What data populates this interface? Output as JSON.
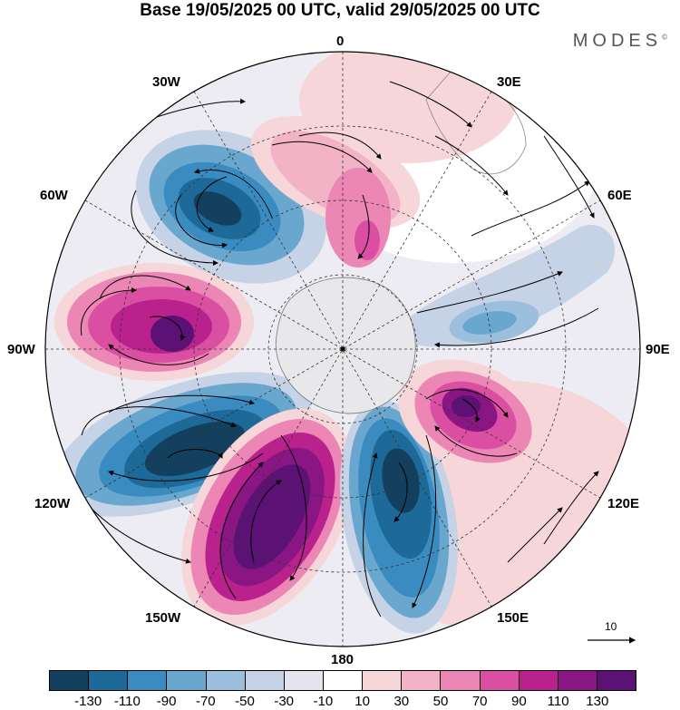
{
  "title": "Base 19/05/2025 00 UTC, valid 29/05/2025 00 UTC",
  "brand": "MODES",
  "brand_mark": "©",
  "longitude_labels": {
    "lon_0": "0",
    "lon_30e": "30E",
    "lon_60e": "60E",
    "lon_90e": "90E",
    "lon_120e": "120E",
    "lon_150e": "150E",
    "lon_180": "180",
    "lon_150w": "150W",
    "lon_120w": "120W",
    "lon_90w": "90W",
    "lon_60w": "60W",
    "lon_30w": "30W"
  },
  "vector_reference": "10",
  "colorbar": {
    "ticks": [
      "-130",
      "-110",
      "-90",
      "-70",
      "-50",
      "-30",
      "-10",
      "10",
      "30",
      "50",
      "70",
      "90",
      "110",
      "130"
    ],
    "colors": [
      "#13405e",
      "#1d6a99",
      "#3a8bc0",
      "#6aa7cf",
      "#9bbfdc",
      "#c6d2e6",
      "#e4e4ef",
      "#ffffff",
      "#f6d6d8",
      "#f3b3c6",
      "#ec86b4",
      "#db4fa3",
      "#b9228c",
      "#8a1684",
      "#5c1175"
    ]
  }
}
